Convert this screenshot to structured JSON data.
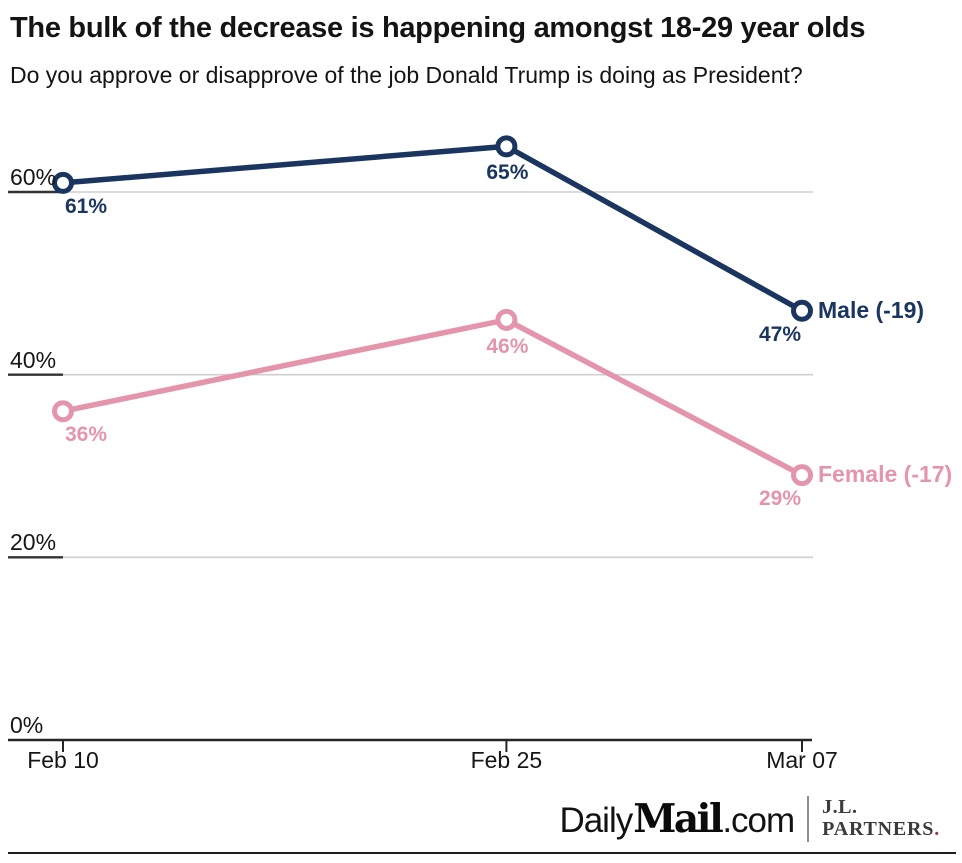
{
  "header": {
    "title": "The bulk of the decrease is happening amongst 18-29 year olds",
    "subtitle": "Do you approve or disapprove of the job Donald Trump is doing as President?"
  },
  "chart_data": {
    "type": "line",
    "title": "The bulk of the decrease is happening amongst 18-29 year olds",
    "subtitle": "Do you approve or disapprove of the job Donald Trump is doing as President?",
    "categories": [
      "Feb 10",
      "Feb 25",
      "Mar 07"
    ],
    "x_days": [
      0,
      15,
      25
    ],
    "series": [
      {
        "name": "Male",
        "end_label": "Male (-19)",
        "values": [
          61,
          65,
          47
        ],
        "color": "#1a3560",
        "change": -19
      },
      {
        "name": "Female",
        "end_label": "Female (-17)",
        "values": [
          36,
          46,
          29
        ],
        "color": "#e495ab",
        "change": -17
      }
    ],
    "value_suffix": "%",
    "y_ticks": [
      0,
      20,
      40,
      60
    ],
    "y_tick_labels": [
      "0%",
      "20%",
      "40%",
      "60%"
    ],
    "ylim": [
      0,
      81
    ],
    "grid": true,
    "legend_position": "end-of-line"
  },
  "colors": {
    "male": "#1a3560",
    "female": "#e495ab",
    "gridline": "#cfcfcf",
    "axis": "#262626",
    "tick_underline": "#333333",
    "text": "#161616"
  },
  "footer": {
    "brand_daily": "Daily",
    "brand_mail": "Mail",
    "brand_com": ".com",
    "partner_line1": "J.L.",
    "partner_line2": "PARTNERS",
    "partner_period": "."
  }
}
